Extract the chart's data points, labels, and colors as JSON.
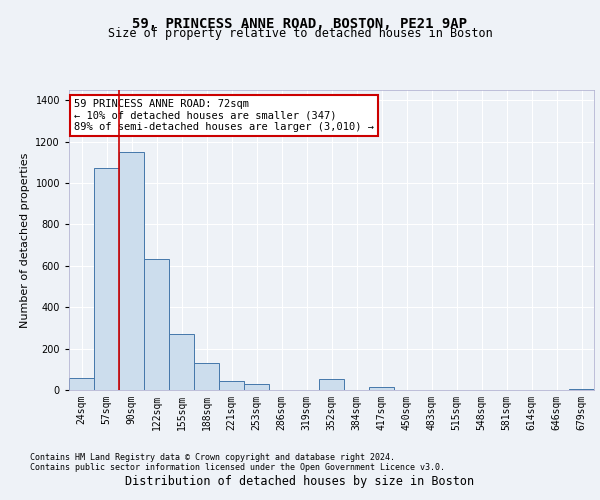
{
  "title1": "59, PRINCESS ANNE ROAD, BOSTON, PE21 9AP",
  "title2": "Size of property relative to detached houses in Boston",
  "xlabel": "Distribution of detached houses by size in Boston",
  "ylabel": "Number of detached properties",
  "bar_labels": [
    "24sqm",
    "57sqm",
    "90sqm",
    "122sqm",
    "155sqm",
    "188sqm",
    "221sqm",
    "253sqm",
    "286sqm",
    "319sqm",
    "352sqm",
    "384sqm",
    "417sqm",
    "450sqm",
    "483sqm",
    "515sqm",
    "548sqm",
    "581sqm",
    "614sqm",
    "646sqm",
    "679sqm"
  ],
  "bar_values": [
    60,
    1075,
    1150,
    635,
    270,
    130,
    45,
    30,
    0,
    0,
    55,
    0,
    15,
    0,
    0,
    0,
    0,
    0,
    0,
    0,
    5
  ],
  "bar_color": "#ccdded",
  "bar_edge_color": "#4477aa",
  "property_line_x": 1.5,
  "property_line_color": "#cc0000",
  "annotation_text": "59 PRINCESS ANNE ROAD: 72sqm\n← 10% of detached houses are smaller (347)\n89% of semi-detached houses are larger (3,010) →",
  "annotation_box_color": "#cc0000",
  "ylim": [
    0,
    1450
  ],
  "yticks": [
    0,
    200,
    400,
    600,
    800,
    1000,
    1200,
    1400
  ],
  "footnote": "Contains HM Land Registry data © Crown copyright and database right 2024.\nContains public sector information licensed under the Open Government Licence v3.0.",
  "bg_color": "#eef2f7",
  "grid_color": "#ffffff",
  "title1_fontsize": 10,
  "title2_fontsize": 8.5,
  "xlabel_fontsize": 8.5,
  "ylabel_fontsize": 8,
  "tick_fontsize": 7,
  "footnote_fontsize": 6,
  "ann_fontsize": 7.5
}
